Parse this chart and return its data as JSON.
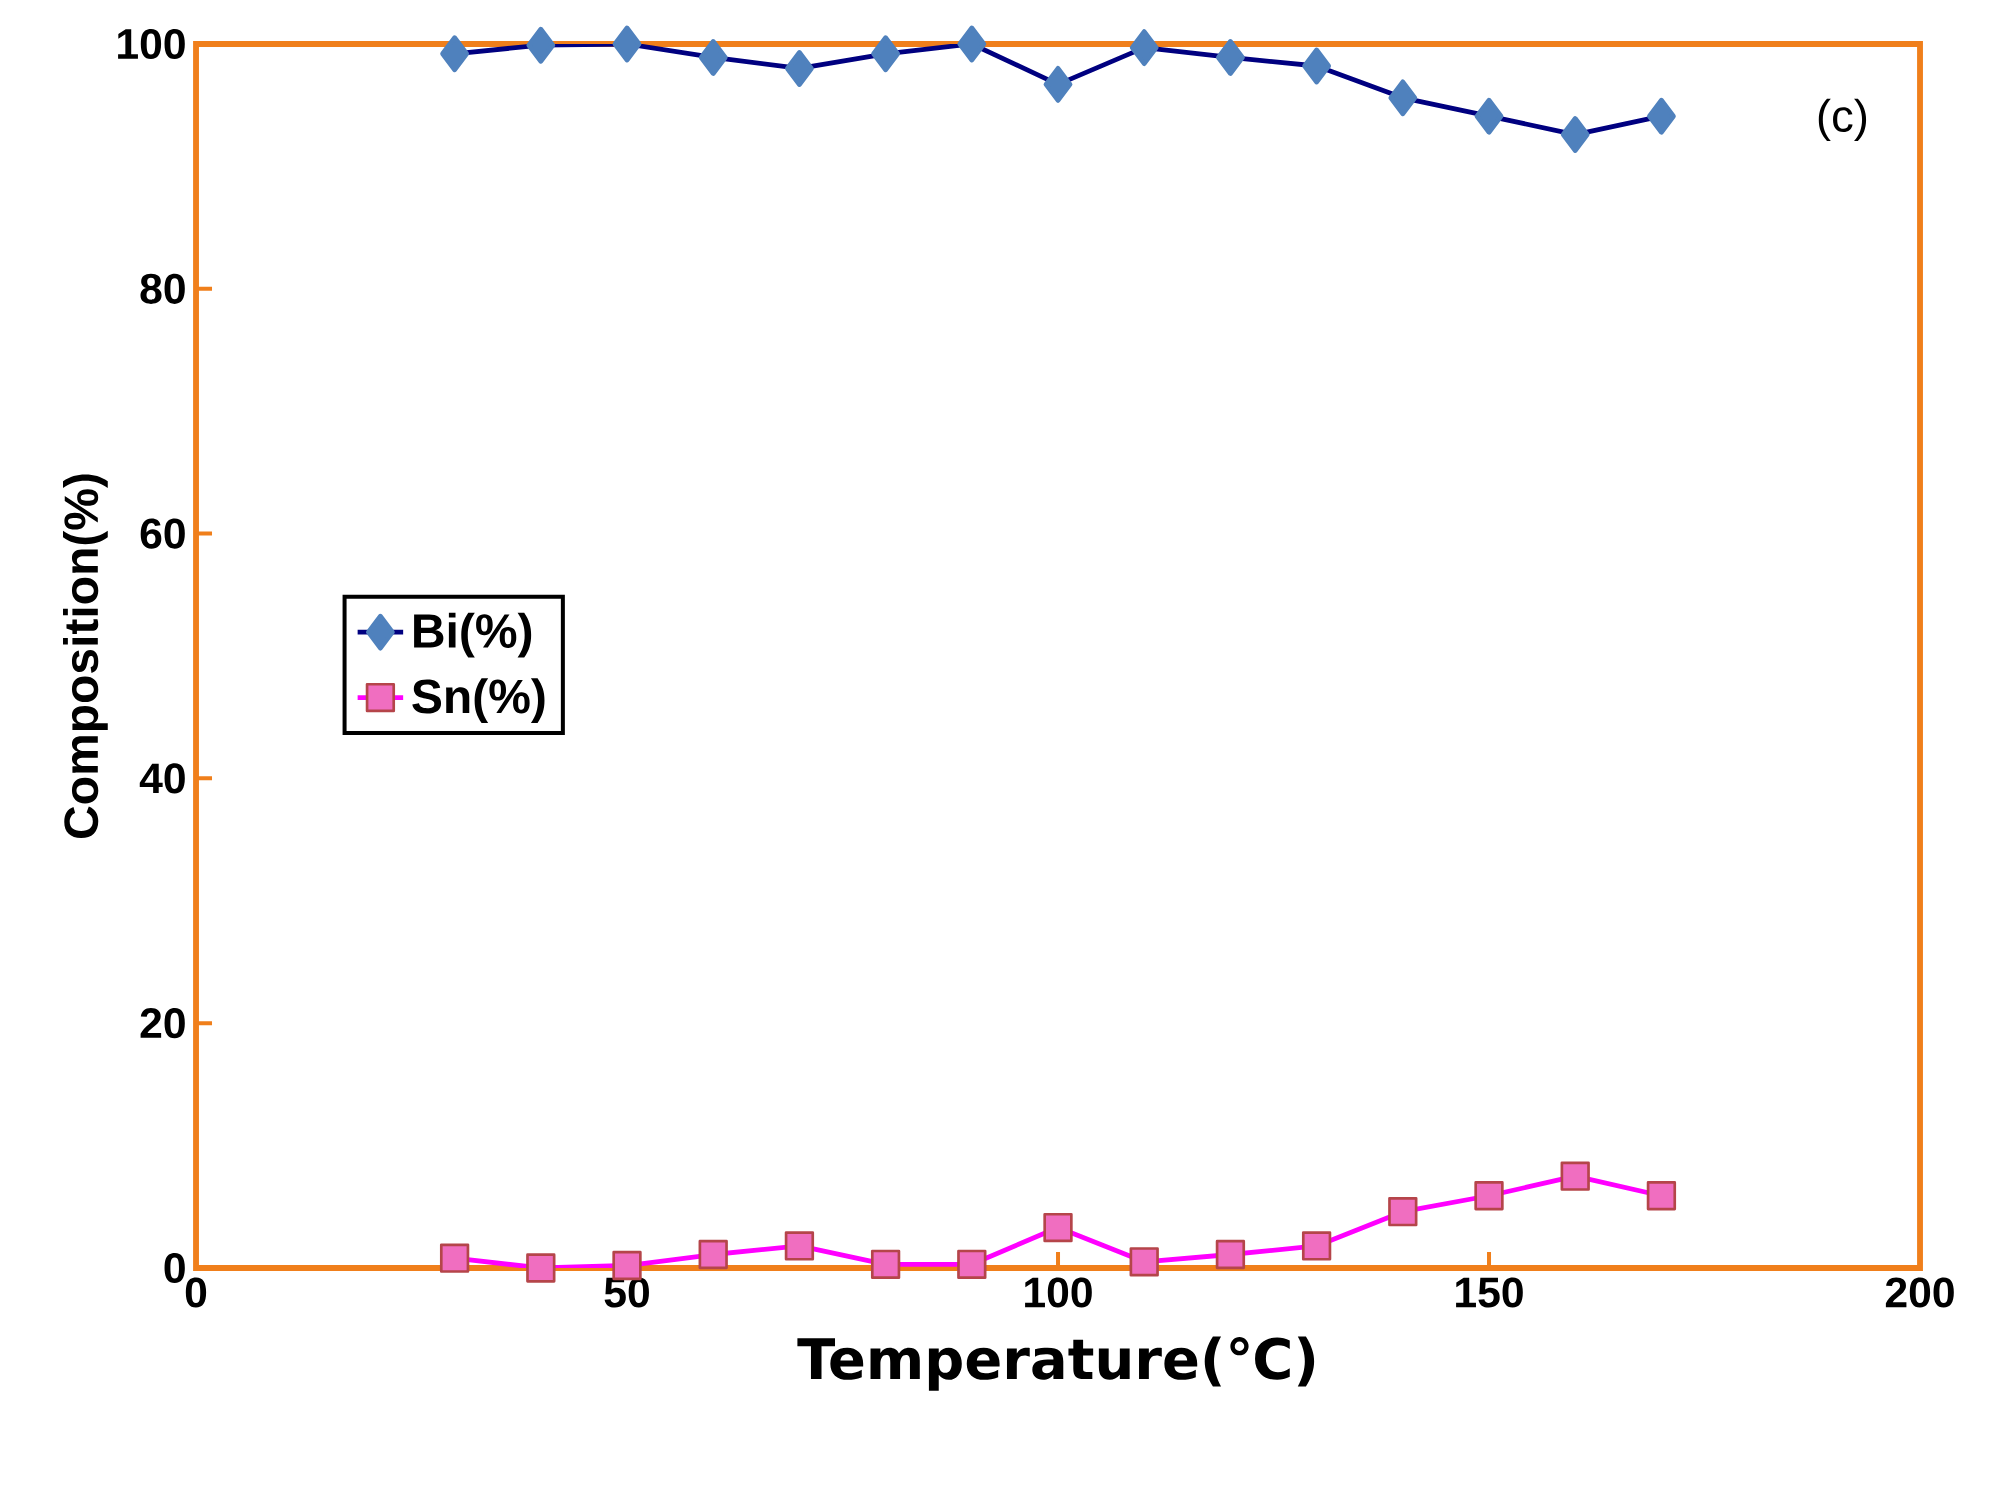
{
  "chart_data": {
    "type": "line",
    "xlabel": "Temperature(℃)",
    "ylabel": "Composition(%)",
    "annotations": [
      "(c)"
    ],
    "xlim": [
      0,
      200
    ],
    "xticks": [
      0,
      50,
      100,
      150,
      200
    ],
    "ylim": [
      0,
      100
    ],
    "yticks": [
      0,
      20,
      40,
      60,
      80,
      100
    ],
    "x": [
      30,
      40,
      50,
      60,
      70,
      80,
      90,
      100,
      110,
      120,
      130,
      140,
      150,
      160,
      170
    ],
    "series": [
      {
        "name": "Bi(%)",
        "color": "#000080",
        "marker": "diamond",
        "values": [
          99.2,
          99.9,
          100,
          98.9,
          98,
          99.2,
          100,
          96.7,
          99.7,
          98.9,
          98.2,
          95.6,
          94.1,
          92.6,
          94.1
        ]
      },
      {
        "name": "Sn(%)",
        "color": "#ff00ff",
        "marker": "square",
        "values": [
          0.8,
          0,
          0.2,
          1.1,
          1.8,
          0.3,
          0.3,
          3.3,
          0.5,
          1.1,
          1.8,
          4.6,
          5.9,
          7.5,
          5.9
        ]
      }
    ],
    "grid": false,
    "legend": "left"
  }
}
